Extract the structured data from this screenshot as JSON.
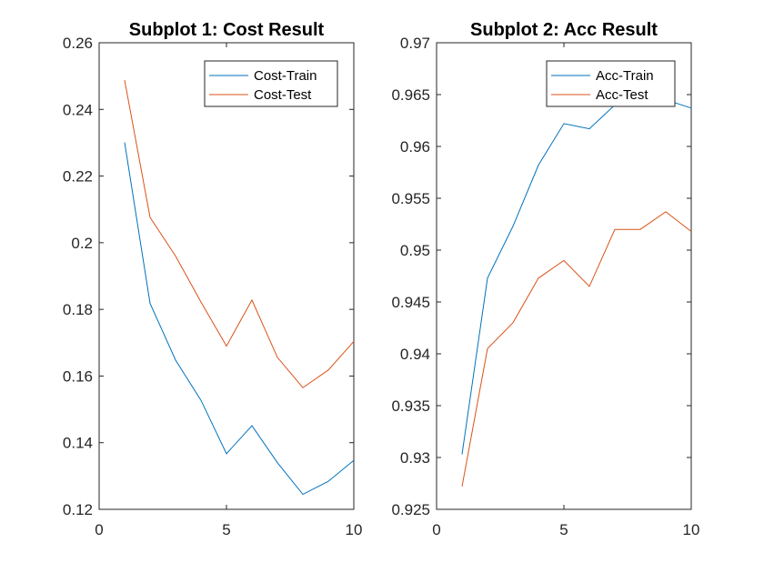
{
  "chart_data": [
    {
      "type": "line",
      "title": "Subplot 1: Cost Result",
      "xlabel": "",
      "ylabel": "",
      "xlim": [
        0,
        10
      ],
      "ylim": [
        0.12,
        0.26
      ],
      "xticks": [
        0,
        5,
        10
      ],
      "xtick_labels": [
        "0",
        "5",
        "10"
      ],
      "yticks": [
        0.12,
        0.14,
        0.16,
        0.18,
        0.2,
        0.22,
        0.24,
        0.26
      ],
      "ytick_labels": [
        "0.12",
        "0.14",
        "0.16",
        "0.18",
        "0.2",
        "0.22",
        "0.24",
        "0.26"
      ],
      "grid": false,
      "legend_position": "top-right",
      "x": [
        1,
        2,
        3,
        4,
        5,
        6,
        7,
        8,
        9,
        10
      ],
      "series": [
        {
          "name": "Cost-Train",
          "color": "#0072BD",
          "values": [
            0.2301,
            0.1818,
            0.1648,
            0.1527,
            0.1367,
            0.1451,
            0.134,
            0.1245,
            0.1284,
            0.1347
          ]
        },
        {
          "name": "Cost-Test",
          "color": "#D95319",
          "values": [
            0.2488,
            0.2076,
            0.196,
            0.1822,
            0.169,
            0.1828,
            0.1656,
            0.1565,
            0.1618,
            0.1704
          ]
        }
      ]
    },
    {
      "type": "line",
      "title": "Subplot 2: Acc Result",
      "xlabel": "",
      "ylabel": "",
      "xlim": [
        0,
        10
      ],
      "ylim": [
        0.925,
        0.97
      ],
      "xticks": [
        0,
        5,
        10
      ],
      "xtick_labels": [
        "0",
        "5",
        "10"
      ],
      "yticks": [
        0.925,
        0.93,
        0.935,
        0.94,
        0.945,
        0.95,
        0.955,
        0.96,
        0.965,
        0.97
      ],
      "ytick_labels": [
        "0.925",
        "0.93",
        "0.935",
        "0.94",
        "0.945",
        "0.95",
        "0.955",
        "0.96",
        "0.965",
        "0.97"
      ],
      "grid": false,
      "legend_position": "top-right",
      "x": [
        1,
        2,
        3,
        4,
        5,
        6,
        7,
        8,
        9,
        10
      ],
      "series": [
        {
          "name": "Acc-Train",
          "color": "#0072BD",
          "values": [
            0.9303,
            0.9473,
            0.9523,
            0.9582,
            0.9622,
            0.9617,
            0.964,
            0.9652,
            0.9645,
            0.9637
          ]
        },
        {
          "name": "Acc-Test",
          "color": "#D95319",
          "values": [
            0.9272,
            0.9405,
            0.943,
            0.9473,
            0.949,
            0.9465,
            0.952,
            0.952,
            0.9537,
            0.9518
          ]
        }
      ]
    }
  ]
}
